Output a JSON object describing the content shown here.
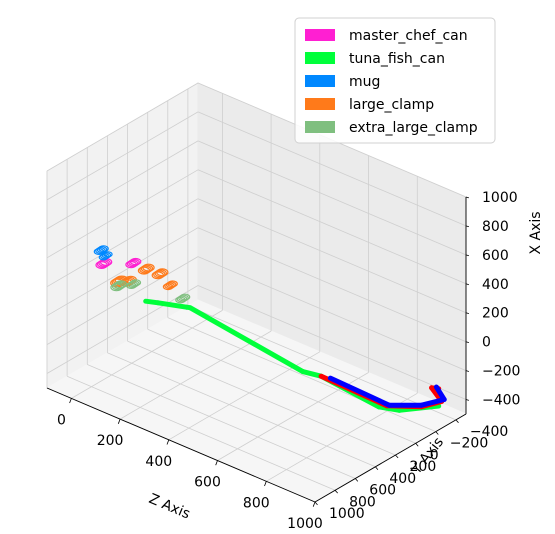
{
  "chart_data": {
    "type": "scatter",
    "projection": "3d",
    "axes": {
      "x": {
        "label": "Z Axis",
        "range": [
          -100,
          1000
        ],
        "ticks": [
          0,
          200,
          400,
          600,
          800,
          1000
        ],
        "tick_labels": [
          "0",
          "200",
          "400",
          "600",
          "800",
          "1000"
        ]
      },
      "y": {
        "label": "Y Axis",
        "range": [
          -500,
          1000
        ],
        "ticks": [
          -400,
          -200,
          0,
          200,
          400,
          600,
          800,
          1000
        ],
        "tick_labels": [
          "−400",
          "−200",
          "0",
          "200",
          "400",
          "600",
          "800",
          "1000"
        ]
      },
      "z": {
        "label": "X Axis",
        "range": [
          -500,
          1000
        ],
        "ticks": [
          -400,
          -200,
          0,
          200,
          400,
          600,
          800,
          1000
        ],
        "tick_labels": [
          "−400",
          "−200",
          "0",
          "200",
          "400",
          "600",
          "800",
          "1000"
        ]
      }
    },
    "grid": true,
    "legend_position": "top-right",
    "series": [
      {
        "name": "master_chef_can",
        "color": "#ff1fd2",
        "kind": "rings",
        "rings": [
          [
            0,
            700,
            300,
            60
          ],
          [
            80,
            600,
            320,
            55
          ]
        ]
      },
      {
        "name": "tuna_fish_can",
        "color": "#00ff3a",
        "kind": "path",
        "points": [
          [
            140,
            600,
            110
          ],
          [
            170,
            550,
            100
          ],
          [
            250,
            460,
            90
          ],
          [
            260,
            450,
            90
          ],
          [
            570,
            80,
            -280
          ],
          [
            620,
            20,
            -300
          ],
          [
            800,
            -120,
            -440
          ],
          [
            850,
            -200,
            -460
          ],
          [
            950,
            -350,
            -420
          ]
        ]
      },
      {
        "name": "mug",
        "color": "#0088ff",
        "kind": "rings",
        "rings": [
          [
            10,
            750,
            420,
            50
          ],
          [
            20,
            730,
            380,
            45
          ]
        ]
      },
      {
        "name": "large_clamp",
        "color": "#ff7a1a",
        "kind": "rings",
        "rings": [
          [
            40,
            640,
            180,
            70
          ],
          [
            60,
            600,
            180,
            60
          ],
          [
            100,
            520,
            260,
            60
          ],
          [
            140,
            480,
            240,
            60
          ],
          [
            170,
            450,
            170,
            50
          ]
        ]
      },
      {
        "name": "extra_large_clamp",
        "color": "#7fbf7f",
        "kind": "rings",
        "rings": [
          [
            20,
            600,
            120,
            60
          ],
          [
            60,
            550,
            140,
            50
          ],
          [
            200,
            400,
            80,
            50
          ]
        ]
      },
      {
        "name": "",
        "color": "#ff0000",
        "kind": "path",
        "points": [
          [
            620,
            20,
            -300
          ],
          [
            820,
            -150,
            -430
          ],
          [
            900,
            -300,
            -440
          ],
          [
            950,
            -380,
            -400
          ],
          [
            900,
            -400,
            -350
          ],
          [
            950,
            -350,
            -300
          ]
        ]
      },
      {
        "name": "",
        "color": "#0000ff",
        "kind": "path",
        "points": [
          [
            650,
            0,
            -300
          ],
          [
            830,
            -150,
            -420
          ],
          [
            900,
            -300,
            -430
          ],
          [
            960,
            -380,
            -380
          ],
          [
            920,
            -400,
            -330
          ]
        ]
      }
    ]
  }
}
